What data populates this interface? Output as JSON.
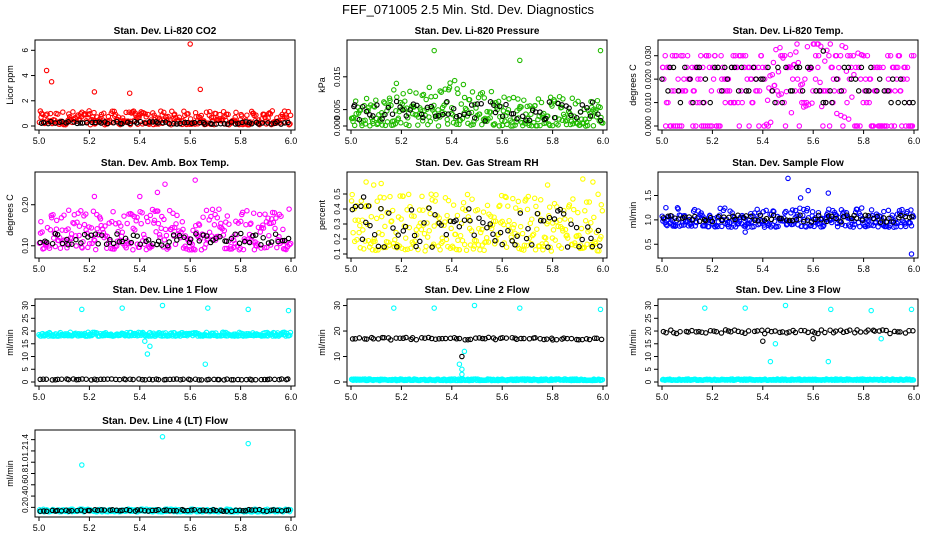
{
  "suptitle": "FEF_071005  2.5 Min. Std. Dev. Diagnostics",
  "colors": {
    "black": "#000000",
    "red": "#ff0000",
    "green": "#22bb00",
    "magenta": "#ff00ff",
    "yellow": "#ffff00",
    "blue": "#0000ff",
    "cyan": "#00ffff"
  },
  "chart_data": [
    {
      "type": "scatter",
      "title": "Stan. Dev. Li-820 CO2",
      "ylabel": "Licor ppm",
      "xlim": [
        5.0,
        6.0
      ],
      "ylim": [
        0,
        6.5
      ],
      "xticks": [
        "5.0",
        "5.2",
        "5.4",
        "5.6",
        "5.8",
        "6.0"
      ],
      "yticks": [
        "0",
        "2",
        "4",
        "6"
      ],
      "series": [
        {
          "color": "red",
          "band": [
            0.1,
            1.2
          ],
          "outliers": [
            [
              5.03,
              4.4
            ],
            [
              5.05,
              3.5
            ],
            [
              5.22,
              2.7
            ],
            [
              5.36,
              2.6
            ],
            [
              5.6,
              6.5
            ],
            [
              5.64,
              2.9
            ]
          ]
        },
        {
          "color": "black",
          "band": [
            0.15,
            0.35
          ],
          "outliers": []
        }
      ]
    },
    {
      "type": "scatter",
      "title": "Stan. Dev. Li-820 Pressure",
      "ylabel": "kPa",
      "xlim": [
        5.0,
        6.0
      ],
      "ylim": [
        0,
        0.025
      ],
      "xticks": [
        "5.0",
        "5.2",
        "5.4",
        "5.6",
        "5.8",
        "6.0"
      ],
      "yticks": [
        "0.000",
        "0.005",
        "0.015"
      ],
      "series": [
        {
          "color": "green",
          "band": [
            0.0,
            0.009
          ],
          "bulge": [
            5.4,
            0.006
          ],
          "outliers": [
            [
              5.33,
              0.023
            ],
            [
              5.67,
              0.02
            ],
            [
              5.99,
              0.023
            ],
            [
              5.17,
              0.011
            ],
            [
              5.18,
              0.013
            ]
          ]
        },
        {
          "color": "black",
          "band": [
            0.0015,
            0.0075
          ],
          "outliers": []
        }
      ]
    },
    {
      "type": "scatter",
      "title": "Stan. Dev. Li-820 Temp.",
      "ylabel": "degrees C",
      "xlim": [
        5.0,
        6.0
      ],
      "ylim": [
        0,
        0.035
      ],
      "xticks": [
        "5.0",
        "5.2",
        "5.4",
        "5.6",
        "5.8",
        "6.0"
      ],
      "yticks": [
        "0.000",
        "0.010",
        "0.020",
        "0.030"
      ],
      "series": [
        {
          "color": "magenta",
          "levels": [
            0.0,
            0.01,
            0.015,
            0.02,
            0.025,
            0.03
          ],
          "bulge": [
            5.6,
            0.01
          ],
          "outliers": [
            [
              5.62,
              0.035
            ],
            [
              5.63,
              0.034
            ]
          ]
        },
        {
          "color": "black",
          "levels": [
            0.01,
            0.015,
            0.02,
            0.025
          ],
          "outliers": [
            [
              5.64,
              0.032
            ]
          ]
        }
      ]
    },
    {
      "type": "scatter",
      "title": "Stan. Dev. Amb. Box Temp.",
      "ylabel": "degrees C",
      "xlim": [
        5.0,
        6.0
      ],
      "ylim": [
        0.08,
        0.27
      ],
      "xticks": [
        "5.0",
        "5.2",
        "5.4",
        "5.6",
        "5.8",
        "6.0"
      ],
      "yticks": [
        "0.10",
        "0.20"
      ],
      "series": [
        {
          "color": "magenta",
          "band": [
            0.09,
            0.19
          ],
          "outliers": [
            [
              5.47,
              0.23
            ],
            [
              5.5,
              0.25
            ],
            [
              5.62,
              0.26
            ],
            [
              5.4,
              0.22
            ],
            [
              5.22,
              0.22
            ]
          ]
        },
        {
          "color": "black",
          "band": [
            0.1,
            0.13
          ],
          "outliers": []
        }
      ]
    },
    {
      "type": "scatter",
      "title": "Stan. Dev. Gas Stream RH",
      "ylabel": "percent",
      "xlim": [
        5.0,
        6.0
      ],
      "ylim": [
        0.1,
        0.62
      ],
      "xticks": [
        "5.0",
        "5.2",
        "5.4",
        "5.6",
        "5.8",
        "6.0"
      ],
      "yticks": [
        "0.1",
        "0.2",
        "0.3",
        "0.4",
        "0.5"
      ],
      "series": [
        {
          "color": "yellow",
          "band": [
            0.12,
            0.5
          ],
          "outliers": [
            [
              5.06,
              0.58
            ],
            [
              5.09,
              0.56
            ],
            [
              5.12,
              0.57
            ],
            [
              5.92,
              0.6
            ],
            [
              5.96,
              0.58
            ],
            [
              5.78,
              0.56
            ]
          ]
        },
        {
          "color": "black",
          "band": [
            0.14,
            0.42
          ],
          "outliers": [
            [
              5.05,
              0.48
            ],
            [
              5.07,
              0.42
            ]
          ]
        }
      ]
    },
    {
      "type": "scatter",
      "title": "Stan. Dev. Sample Flow",
      "ylabel": "ml/min",
      "xlim": [
        5.0,
        6.0
      ],
      "ylim": [
        0.3,
        1.9
      ],
      "xticks": [
        "5.0",
        "5.2",
        "5.4",
        "5.6",
        "5.8",
        "6.0"
      ],
      "yticks": [
        "0.5",
        "1.0",
        "1.5"
      ],
      "series": [
        {
          "color": "blue",
          "band": [
            0.85,
            1.25
          ],
          "outliers": [
            [
              5.5,
              1.85
            ],
            [
              5.58,
              1.6
            ],
            [
              5.55,
              1.45
            ],
            [
              5.99,
              0.3
            ],
            [
              5.33,
              0.75
            ],
            [
              5.66,
              1.55
            ]
          ]
        },
        {
          "color": "black",
          "band": [
            0.95,
            1.1
          ],
          "outliers": []
        }
      ]
    },
    {
      "type": "scatter",
      "title": "Stan. Dev. Line 1 Flow",
      "ylabel": "ml/min",
      "xlim": [
        5.0,
        6.0
      ],
      "ylim": [
        0,
        31
      ],
      "xticks": [
        "5.0",
        "5.2",
        "5.4",
        "5.6",
        "5.8",
        "6.0"
      ],
      "yticks": [
        "0",
        "5",
        "10",
        "15",
        "20",
        "25",
        "30"
      ],
      "series": [
        {
          "color": "cyan",
          "band": [
            18,
            19.5
          ],
          "outliers": [
            [
              5.17,
              28.5
            ],
            [
              5.33,
              29
            ],
            [
              5.49,
              30
            ],
            [
              5.67,
              29
            ],
            [
              5.83,
              28.5
            ],
            [
              5.99,
              28
            ],
            [
              5.43,
              11
            ],
            [
              5.44,
              14
            ],
            [
              5.42,
              16
            ],
            [
              5.66,
              7
            ]
          ]
        },
        {
          "color": "black",
          "band": [
            0.8,
            1.2
          ],
          "outliers": []
        }
      ]
    },
    {
      "type": "scatter",
      "title": "Stan. Dev. Line 2 Flow",
      "ylabel": "ml/min",
      "xlim": [
        5.0,
        6.0
      ],
      "ylim": [
        0,
        31
      ],
      "xticks": [
        "5.0",
        "5.2",
        "5.4",
        "5.6",
        "5.8",
        "6.0"
      ],
      "yticks": [
        "0",
        "10",
        "20",
        "30"
      ],
      "series": [
        {
          "color": "cyan",
          "band": [
            0.6,
            1.2
          ],
          "outliers": [
            [
              5.17,
              29
            ],
            [
              5.33,
              29
            ],
            [
              5.49,
              30
            ],
            [
              5.67,
              29
            ],
            [
              5.99,
              28.5
            ],
            [
              5.44,
              5
            ],
            [
              5.43,
              7
            ],
            [
              5.44,
              3
            ],
            [
              5.45,
              12
            ]
          ]
        },
        {
          "color": "black",
          "band": [
            16.5,
            17.5
          ],
          "outliers": [
            [
              5.44,
              10
            ]
          ]
        }
      ]
    },
    {
      "type": "scatter",
      "title": "Stan. Dev. Line 3 Flow",
      "ylabel": "ml/min",
      "xlim": [
        5.0,
        6.0
      ],
      "ylim": [
        0,
        31
      ],
      "xticks": [
        "5.0",
        "5.2",
        "5.4",
        "5.6",
        "5.8",
        "6.0"
      ],
      "yticks": [
        "0",
        "5",
        "10",
        "15",
        "20",
        "25",
        "30"
      ],
      "series": [
        {
          "color": "cyan",
          "band": [
            0.7,
            1.2
          ],
          "outliers": [
            [
              5.17,
              29
            ],
            [
              5.33,
              29
            ],
            [
              5.49,
              30
            ],
            [
              5.67,
              28.5
            ],
            [
              5.83,
              28
            ],
            [
              5.99,
              28.5
            ],
            [
              5.43,
              8
            ],
            [
              5.45,
              15
            ],
            [
              5.66,
              8
            ],
            [
              5.87,
              17
            ]
          ]
        },
        {
          "color": "black",
          "band": [
            19,
            20.5
          ],
          "outliers": [
            [
              5.4,
              16
            ],
            [
              5.6,
              17
            ]
          ]
        }
      ]
    },
    {
      "type": "scatter",
      "title": "Stan. Dev. Line 4 (LT) Flow",
      "ylabel": "ml/min",
      "xlim": [
        5.0,
        6.0
      ],
      "ylim": [
        0.1,
        1.5
      ],
      "xticks": [
        "5.0",
        "5.2",
        "5.4",
        "5.6",
        "5.8",
        "6.0"
      ],
      "yticks": [
        "0.2",
        "0.4",
        "0.6",
        "0.8",
        "1.0",
        "1.2",
        "1.4"
      ],
      "series": [
        {
          "color": "cyan",
          "band": [
            0.12,
            0.17
          ],
          "outliers": [
            [
              5.17,
              0.95
            ],
            [
              5.49,
              1.45
            ],
            [
              5.83,
              1.33
            ]
          ]
        },
        {
          "color": "black",
          "band": [
            0.13,
            0.16
          ],
          "outliers": []
        }
      ]
    }
  ]
}
